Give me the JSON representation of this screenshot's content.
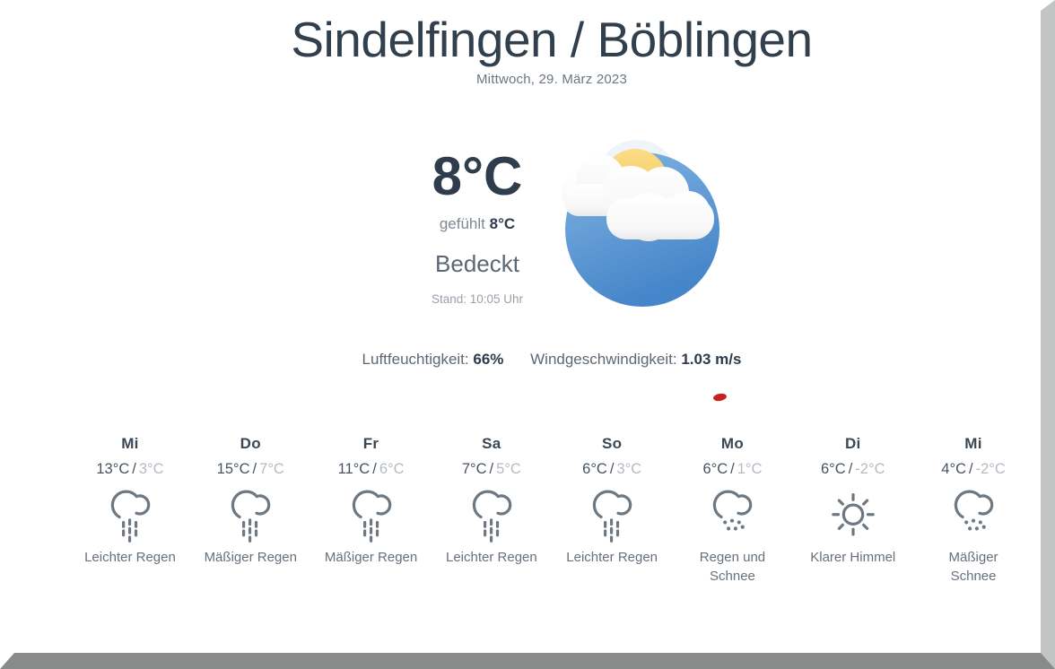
{
  "header": {
    "title": "Sindelfingen / Böblingen",
    "date": "Mittwoch, 29. März 2023"
  },
  "current": {
    "temperature": "8°C",
    "feels_like_label": "gefühlt",
    "feels_like_value": "8°C",
    "condition": "Bedeckt",
    "updated": "Stand: 10:05 Uhr",
    "icon": "sun-behind-clouds-icon"
  },
  "metrics": {
    "humidity_label": "Luftfeuchtigkeit:",
    "humidity_value": "66%",
    "wind_label": "Windgeschwindigkeit:",
    "wind_value": "1.03 m/s"
  },
  "forecast_separator": "/",
  "forecast": [
    {
      "day": "Mi",
      "high": "13°C",
      "low": "3°C",
      "condition": "Leichter Regen",
      "icon": "rain-cloud-icon"
    },
    {
      "day": "Do",
      "high": "15°C",
      "low": "7°C",
      "condition": "Mäßiger Regen",
      "icon": "rain-cloud-icon"
    },
    {
      "day": "Fr",
      "high": "11°C",
      "low": "6°C",
      "condition": "Mäßiger Regen",
      "icon": "rain-cloud-icon"
    },
    {
      "day": "Sa",
      "high": "7°C",
      "low": "5°C",
      "condition": "Leichter Regen",
      "icon": "rain-cloud-icon"
    },
    {
      "day": "So",
      "high": "6°C",
      "low": "3°C",
      "condition": "Leichter Regen",
      "icon": "rain-cloud-icon"
    },
    {
      "day": "Mo",
      "high": "6°C",
      "low": "1°C",
      "condition": "Regen und\nSchnee",
      "icon": "snow-cloud-icon"
    },
    {
      "day": "Di",
      "high": "6°C",
      "low": "-2°C",
      "condition": "Klarer Himmel",
      "icon": "sun-icon"
    },
    {
      "day": "Mi",
      "high": "4°C",
      "low": "-2°C",
      "condition": "Mäßiger\nSchnee",
      "icon": "snow-cloud-icon"
    }
  ],
  "annotation": {
    "red_dot_color": "#c82121"
  },
  "colors": {
    "ink": "#2e3c4c",
    "day-name": "#3b4854",
    "mid-gray": "#5f6b77",
    "soft-gray": "#8d97a1",
    "faint-gray": "#b5bbc2",
    "icon-stroke": "#6e7883",
    "red-dot": "#c82121",
    "border-right": "#c3c4c4",
    "border-bottom": "#898a8a",
    "sun-yellow": "#f6cd68",
    "sky-blue": "#4f8fd2"
  }
}
